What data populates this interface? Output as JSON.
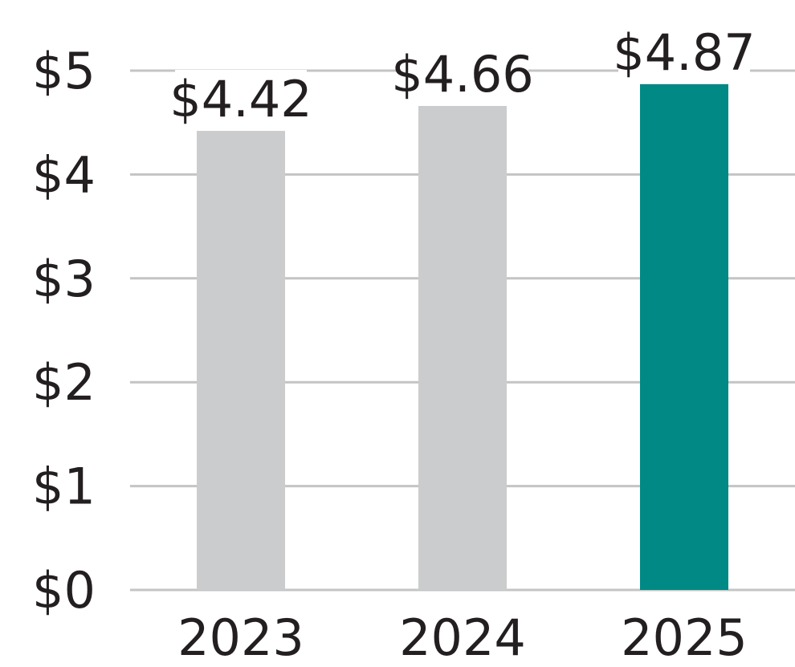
{
  "chart_data": {
    "type": "bar",
    "categories": [
      "2023",
      "2024",
      "2025"
    ],
    "values": [
      4.42,
      4.66,
      4.87
    ],
    "data_labels": [
      "$4.42",
      "$4.66",
      "$4.87"
    ],
    "y_ticks": [
      {
        "value": 0,
        "label": "$0"
      },
      {
        "value": 1,
        "label": "$1"
      },
      {
        "value": 2,
        "label": "$2"
      },
      {
        "value": 3,
        "label": "$3"
      },
      {
        "value": 4,
        "label": "$4"
      },
      {
        "value": 5,
        "label": "$5"
      }
    ],
    "ylim": [
      0,
      5
    ],
    "grid": true,
    "bar_colors": [
      "#cbcccd",
      "#cbcccd",
      "#008985"
    ],
    "title": "",
    "xlabel": "",
    "ylabel": ""
  }
}
